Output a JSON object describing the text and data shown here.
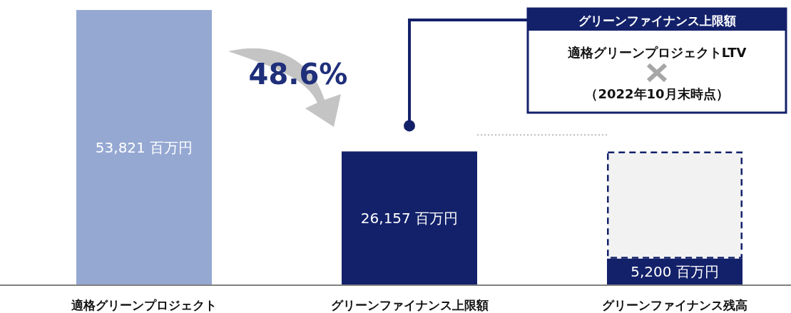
{
  "chart_data": {
    "type": "bar",
    "stacked": true,
    "categories": [
      "適格グリーンプロジェクト",
      "グリーンファイナンス上限額",
      "グリーンファイナンス残高"
    ],
    "series": [
      {
        "colors": [
          "#95a8d2",
          "#13216a",
          "#13216a"
        ],
        "values": [
          53821,
          26157,
          5200
        ],
        "value_labels": [
          "53,821 百万円",
          "26,157 百万円",
          "5,200 百万円"
        ]
      },
      {
        "color": "#f2f2f2",
        "line_style": "dashed",
        "values": [
          null,
          null,
          20957
        ]
      }
    ],
    "ref_lines": [
      {
        "axis": "y",
        "value": 29400,
        "color": "#bbbbbb",
        "line_style": "dotted"
      }
    ],
    "annotations": [
      "48.6%",
      "グリーンファイナンス上限額",
      "適格グリーンプロジェクトLTV",
      "（2022年10月末時点）"
    ]
  }
}
